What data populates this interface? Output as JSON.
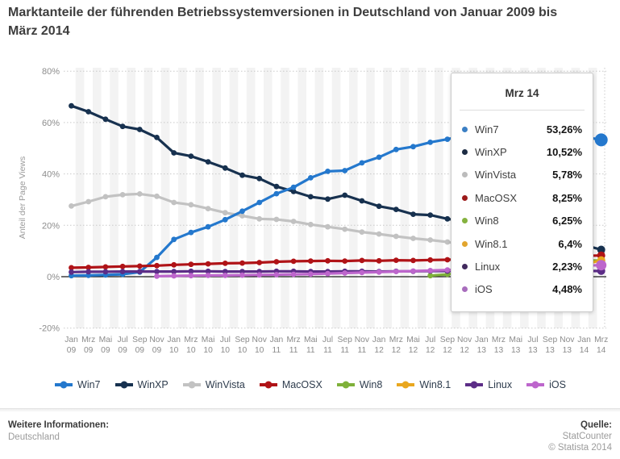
{
  "title": "Marktanteile der führenden Betriebssystemversionen in Deutschland von Januar 2009 bis März 2014",
  "chart_data": {
    "type": "line",
    "title": "Marktanteile der führenden Betriebssystemversionen in Deutschland von Januar 2009 bis März 2014",
    "xlabel": "",
    "ylabel": "Anteil der Page Views",
    "ylim": [
      -20,
      80
    ],
    "yticks": [
      80,
      60,
      40,
      20,
      0,
      -20
    ],
    "grid": "horizontal-dotted",
    "legend_position": "bottom",
    "highlighted_x": "Mrz 14",
    "categories": [
      "Jan 09",
      "Mrz 09",
      "Mai 09",
      "Jul 09",
      "Sep 09",
      "Nov 09",
      "Jan 10",
      "Mrz 10",
      "Mai 10",
      "Jul 10",
      "Sep 10",
      "Nov 10",
      "Jan 11",
      "Mrz 11",
      "Mai 11",
      "Jul 11",
      "Sep 11",
      "Nov 11",
      "Jan 12",
      "Mrz 12",
      "Mai 12",
      "Jul 12",
      "Sep 12",
      "Nov 12",
      "Jan 13",
      "Mrz 13",
      "Mai 13",
      "Jul 13",
      "Sep 13",
      "Nov 13",
      "Jan 14",
      "Mrz 14"
    ],
    "series": [
      {
        "name": "Win7",
        "color": "#2478cd",
        "values": [
          0.4,
          0.5,
          0.7,
          0.9,
          1.8,
          7.5,
          14.5,
          17.2,
          19.4,
          22.2,
          25.5,
          28.9,
          32.3,
          34.8,
          38.5,
          41.0,
          41.3,
          44.3,
          46.5,
          49.5,
          50.6,
          52.3,
          53.5,
          55.0,
          55.7,
          56.2,
          56.0,
          55.9,
          55.8,
          55.4,
          54.5,
          53.26
        ]
      },
      {
        "name": "WinXP",
        "color": "#17314f",
        "values": [
          66.5,
          64.2,
          61.3,
          58.5,
          57.3,
          54.2,
          48.2,
          46.9,
          44.7,
          42.3,
          39.5,
          38.2,
          35.1,
          33.2,
          31.1,
          30.2,
          31.7,
          29.5,
          27.4,
          26.2,
          24.3,
          24.0,
          22.5,
          21.5,
          20.3,
          18.8,
          17.4,
          16.2,
          15.2,
          14.0,
          12.3,
          10.52
        ]
      },
      {
        "name": "WinVista",
        "color": "#c2c2c2",
        "values": [
          27.5,
          29.2,
          31.1,
          31.9,
          32.2,
          31.3,
          28.9,
          28.0,
          26.5,
          24.9,
          23.7,
          22.5,
          22.3,
          21.5,
          20.3,
          19.4,
          18.5,
          17.4,
          16.6,
          15.7,
          14.9,
          14.3,
          13.5,
          12.6,
          11.6,
          10.5,
          9.5,
          8.6,
          7.8,
          7.1,
          6.4,
          5.78
        ]
      },
      {
        "name": "MacOSX",
        "color": "#b01317",
        "values": [
          3.5,
          3.6,
          3.8,
          4.0,
          4.1,
          4.3,
          4.6,
          4.8,
          5.0,
          5.2,
          5.3,
          5.5,
          5.8,
          6.0,
          6.1,
          6.2,
          6.1,
          6.3,
          6.2,
          6.4,
          6.3,
          6.5,
          6.6,
          6.8,
          7.0,
          7.2,
          7.3,
          7.5,
          7.7,
          7.9,
          8.1,
          8.25
        ]
      },
      {
        "name": "Win8",
        "color": "#7fb13a",
        "values": [
          null,
          null,
          null,
          null,
          null,
          null,
          null,
          null,
          null,
          null,
          null,
          null,
          null,
          null,
          null,
          null,
          null,
          null,
          null,
          null,
          null,
          0.4,
          0.9,
          1.6,
          2.3,
          3.1,
          3.9,
          4.6,
          5.3,
          5.9,
          6.4,
          6.25
        ]
      },
      {
        "name": "Win8.1",
        "color": "#e9a71f",
        "values": [
          null,
          null,
          null,
          null,
          null,
          null,
          null,
          null,
          null,
          null,
          null,
          null,
          null,
          null,
          null,
          null,
          null,
          null,
          null,
          null,
          null,
          null,
          null,
          null,
          null,
          null,
          null,
          0.3,
          1.2,
          2.8,
          4.7,
          6.4
        ]
      },
      {
        "name": "Linux",
        "color": "#5c2d87",
        "values": [
          1.8,
          1.9,
          1.9,
          2.0,
          2.0,
          2.0,
          2.0,
          2.1,
          2.1,
          2.0,
          2.0,
          2.0,
          2.1,
          2.1,
          2.0,
          2.0,
          2.1,
          2.1,
          2.0,
          2.1,
          2.1,
          2.2,
          2.2,
          2.3,
          2.3,
          2.2,
          2.2,
          2.3,
          2.3,
          2.2,
          2.2,
          2.23
        ]
      },
      {
        "name": "iOS",
        "color": "#bd66cc",
        "values": [
          null,
          null,
          null,
          null,
          null,
          0.2,
          0.3,
          0.4,
          0.5,
          0.5,
          0.6,
          0.7,
          0.8,
          0.9,
          1.0,
          1.2,
          1.4,
          1.6,
          1.8,
          2.0,
          2.2,
          2.4,
          2.6,
          2.8,
          3.0,
          3.2,
          3.4,
          3.6,
          3.9,
          4.1,
          4.3,
          4.48
        ]
      }
    ]
  },
  "tooltip": {
    "title": "Mrz 14",
    "rows": [
      {
        "label": "Win7",
        "value": "53,26%",
        "color": "#3b7fc4"
      },
      {
        "label": "WinXP",
        "value": "10,52%",
        "color": "#1c2c44"
      },
      {
        "label": "WinVista",
        "value": "5,78%",
        "color": "#bcbcbc"
      },
      {
        "label": "MacOSX",
        "value": "8,25%",
        "color": "#9c1a1a"
      },
      {
        "label": "Win8",
        "value": "6,25%",
        "color": "#85b23f"
      },
      {
        "label": "Win8.1",
        "value": "6,4%",
        "color": "#e2a52e"
      },
      {
        "label": "Linux",
        "value": "2,23%",
        "color": "#422a5e"
      },
      {
        "label": "iOS",
        "value": "4,48%",
        "color": "#a86dbd"
      }
    ]
  },
  "legend": {
    "items": [
      {
        "label": "Win7",
        "color": "#2478cd"
      },
      {
        "label": "WinXP",
        "color": "#17314f"
      },
      {
        "label": "WinVista",
        "color": "#c2c2c2"
      },
      {
        "label": "MacOSX",
        "color": "#b01317"
      },
      {
        "label": "Win8",
        "color": "#7fb13a"
      },
      {
        "label": "Win8.1",
        "color": "#e9a71f"
      },
      {
        "label": "Linux",
        "color": "#5c2d87"
      },
      {
        "label": "iOS",
        "color": "#bd66cc"
      }
    ]
  },
  "footer": {
    "info_label": "Weitere Informationen:",
    "info_value": "Deutschland",
    "source_label": "Quelle:",
    "source_value": "StatCounter",
    "copyright": "© Statista 2014"
  }
}
